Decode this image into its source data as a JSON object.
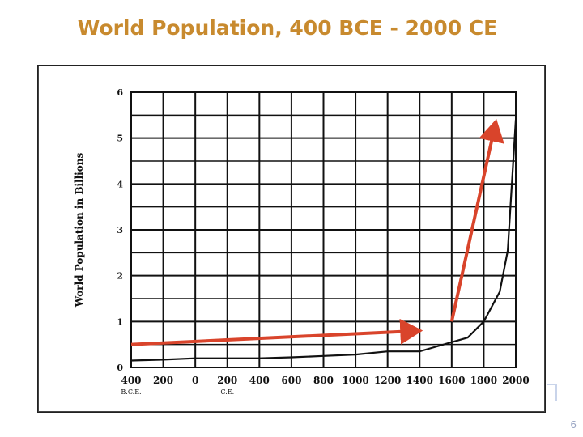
{
  "slide": {
    "title": "World Population, 400 BCE - 2000 CE",
    "page_number": "6"
  },
  "chart_data": {
    "type": "line",
    "title": "World Population, 400 BCE - 2000 CE",
    "xlabel": "",
    "ylabel": "World Population in Billions",
    "xlim": [
      -400,
      2000
    ],
    "ylim": [
      0,
      6
    ],
    "grid": true,
    "x_ticks": [
      {
        "value": -400,
        "label": "400"
      },
      {
        "value": -200,
        "label": "200"
      },
      {
        "value": 0,
        "label": "0"
      },
      {
        "value": 200,
        "label": "200"
      },
      {
        "value": 400,
        "label": "400"
      },
      {
        "value": 600,
        "label": "600"
      },
      {
        "value": 800,
        "label": "800"
      },
      {
        "value": 1000,
        "label": "1000"
      },
      {
        "value": 1200,
        "label": "1200"
      },
      {
        "value": 1400,
        "label": "1400"
      },
      {
        "value": 1600,
        "label": "1600"
      },
      {
        "value": 1800,
        "label": "1800"
      },
      {
        "value": 2000,
        "label": "2000"
      }
    ],
    "x_era_labels": [
      {
        "value": -400,
        "label": "B.C.E."
      },
      {
        "value": 200,
        "label": "C.E."
      }
    ],
    "y_ticks": [
      0,
      1,
      2,
      3,
      4,
      5,
      6
    ],
    "series": [
      {
        "name": "World Population",
        "x": [
          -400,
          -200,
          0,
          200,
          400,
          600,
          800,
          1000,
          1200,
          1400,
          1500,
          1600,
          1700,
          1800,
          1900,
          1950,
          2000
        ],
        "y": [
          0.15,
          0.17,
          0.2,
          0.2,
          0.2,
          0.22,
          0.25,
          0.28,
          0.35,
          0.35,
          0.45,
          0.55,
          0.65,
          1.0,
          1.65,
          2.55,
          5.4
        ]
      }
    ],
    "annotations": [
      {
        "type": "arrow",
        "color": "#d9442b",
        "from": [
          -400,
          0.5
        ],
        "to": [
          1400,
          0.8
        ]
      },
      {
        "type": "arrow",
        "color": "#d9442b",
        "from": [
          1600,
          1.0
        ],
        "to": [
          1875,
          5.35
        ]
      }
    ]
  }
}
